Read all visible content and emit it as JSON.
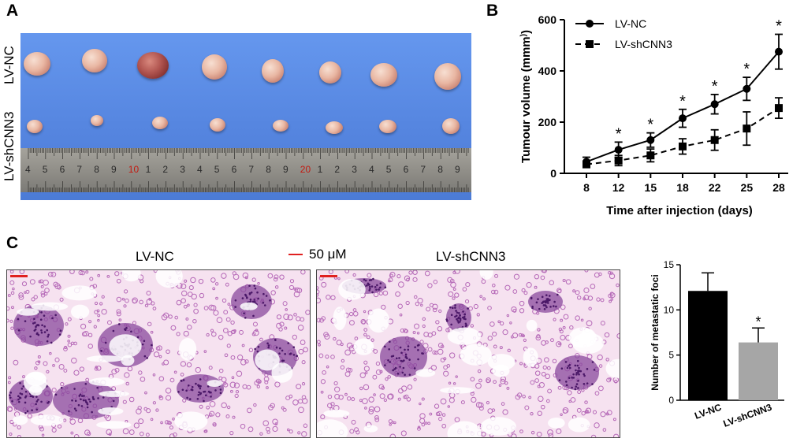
{
  "panel_a": {
    "letter": "A",
    "row_labels": [
      "LV-NC",
      "LV-shCNN3"
    ],
    "ruler_numbers": [
      "4",
      "5",
      "6",
      "7",
      "8",
      "9",
      "10",
      "1",
      "2",
      "3",
      "4",
      "5",
      "6",
      "7",
      "8",
      "9",
      "20",
      "1",
      "2",
      "3",
      "4",
      "5",
      "6",
      "7",
      "8",
      "9",
      "3"
    ],
    "ruler_red_indices": [
      6,
      16,
      26
    ],
    "colors": {
      "background_blue": "#5d8ee6"
    }
  },
  "panel_b": {
    "letter": "B"
  },
  "panel_c": {
    "letter": "C",
    "image_titles": [
      "LV-NC",
      "LV-shCNN3"
    ],
    "scale_bar_label": "50 μM",
    "colors": {
      "scale_bar": "#e02020",
      "tissue_pink": "#f4d8ec",
      "tissue_purple": "#6a2a86"
    }
  },
  "chart_data": [
    {
      "type": "line",
      "title": "",
      "xlabel": "Time after injection (days)",
      "ylabel": "Tumour volume (mm3)",
      "x": [
        8,
        12,
        15,
        18,
        22,
        25,
        28
      ],
      "x_tick_labels": [
        "8",
        "12",
        "15",
        "18",
        "22",
        "25",
        "28"
      ],
      "ylim": [
        0,
        600
      ],
      "y_ticks": [
        0,
        200,
        400,
        600
      ],
      "series": [
        {
          "name": "LV-NC",
          "marker": "circle",
          "line": "solid",
          "values": [
            45,
            92,
            130,
            215,
            270,
            330,
            475
          ],
          "errors": [
            18,
            30,
            28,
            35,
            38,
            45,
            68
          ]
        },
        {
          "name": "LV-shCNN3",
          "marker": "square",
          "line": "dashed",
          "values": [
            35,
            50,
            70,
            105,
            130,
            175,
            255
          ],
          "errors": [
            12,
            20,
            25,
            30,
            40,
            65,
            40
          ]
        }
      ],
      "significance_marks": [
        "*",
        "*",
        "*",
        "*",
        "*",
        "*"
      ],
      "legend_position": "top-left"
    },
    {
      "type": "bar",
      "title": "",
      "xlabel": "",
      "ylabel": "Number of metastatic foci",
      "categories": [
        "LV-NC",
        "LV-shCNN3"
      ],
      "values": [
        12.1,
        6.4
      ],
      "errors": [
        2.0,
        1.6
      ],
      "bar_colors": [
        "#000000",
        "#a6a6a6"
      ],
      "significance_marks": [
        "",
        "*"
      ],
      "ylim": [
        0,
        15
      ],
      "y_ticks": [
        0,
        5,
        10,
        15
      ]
    }
  ]
}
